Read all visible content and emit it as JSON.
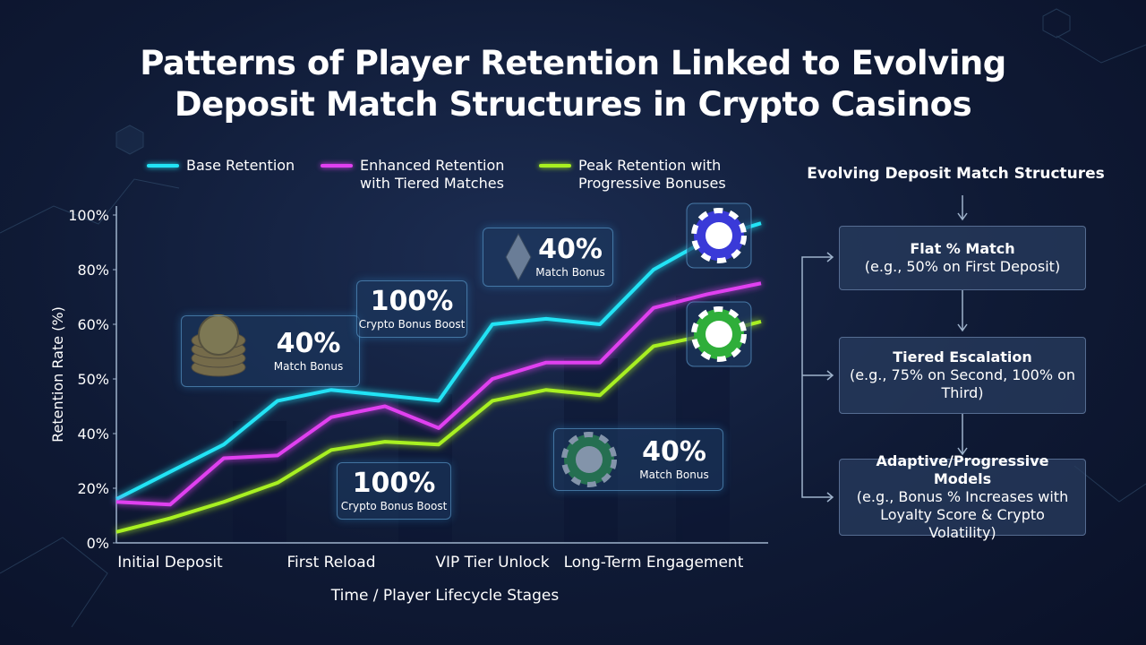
{
  "chart_data": {
    "type": "line",
    "title": "Patterns of Player Retention Linked to Evolving Deposit Match Structures in Crypto Casinos",
    "x_label": "Time / Player Lifecycle Stages",
    "y_label": "Retention Rate (%)",
    "categories": [
      null,
      "Initial Deposit",
      null,
      null,
      "First Reload",
      null,
      null,
      "VIP Tier Unlock",
      null,
      null,
      "Long-Term Engagement",
      null,
      null
    ],
    "ylim": [
      0,
      100
    ],
    "yticks": [
      {
        "value": 0,
        "label": "0%"
      },
      {
        "value": 20,
        "label": "20%"
      },
      {
        "value": 40,
        "label": "40%"
      },
      {
        "value": 50,
        "label": "50%"
      },
      {
        "value": 60,
        "label": "60%"
      },
      {
        "value": 80,
        "label": "80%"
      },
      {
        "value": 100,
        "label": "100%"
      }
    ],
    "series": [
      {
        "name": "Base Retention",
        "color": "#22e3f5",
        "values": [
          16,
          26,
          36,
          46,
          48,
          47,
          46,
          60,
          62,
          60,
          80,
          91,
          97
        ]
      },
      {
        "name": "Enhanced Retention with Tiered Matches",
        "color": "#e040f0",
        "values": [
          15,
          14,
          31,
          32,
          43,
          45,
          41,
          50,
          53,
          53,
          66,
          71,
          75
        ]
      },
      {
        "name": "Peak Retention with Progressive Bonuses",
        "color": "#a8f020",
        "values": [
          4,
          9,
          15,
          22,
          34,
          37,
          36,
          46,
          48,
          47,
          56,
          58,
          61
        ]
      }
    ],
    "annotations": [
      {
        "big": "40%",
        "small": "Match Bonus"
      },
      {
        "big": "100%",
        "small": "Crypto Bonus Boost"
      },
      {
        "big": "40%",
        "small": "Match Bonus"
      },
      {
        "big": "100%",
        "small": "Crypto Bonus Boost"
      },
      {
        "big": "40%",
        "small": "Match Bonus"
      }
    ]
  },
  "flow": {
    "title": "Evolving Deposit Match Structures",
    "steps": [
      {
        "title": "Flat % Match",
        "body": "(e.g., 50% on First Deposit)"
      },
      {
        "title": "Tiered Escalation",
        "body": "(e.g., 75% on Second, 100% on Third)"
      },
      {
        "title": "Adaptive/Progressive Models",
        "body": "(e.g., Bonus % Increases with Loyalty Score & Crypto Volatility)"
      }
    ]
  }
}
